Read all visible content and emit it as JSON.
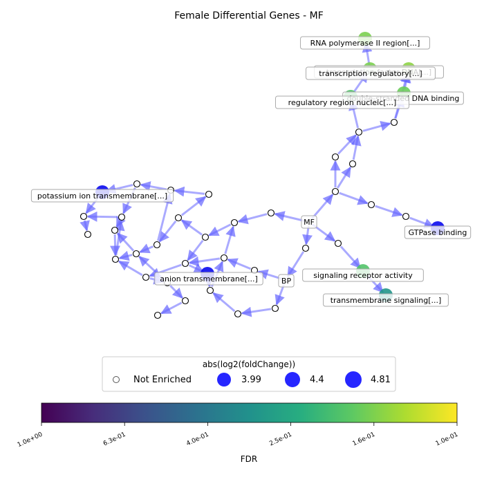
{
  "chart_data": {
    "type": "network",
    "title": "Female Differential Genes - MF",
    "root_label": "MF",
    "edge_color": "#6464ff",
    "nodes": [
      {
        "id": "MF",
        "label": "MF",
        "enriched": false,
        "root": true
      },
      {
        "id": "BP",
        "label": "BP",
        "enriched": false
      },
      {
        "id": "rnapol",
        "label": "RNA polymerase II region[...]",
        "enriched": true,
        "fdr": 0.16
      },
      {
        "id": "tfdna",
        "label": "transcription factor DNA[...]",
        "enriched": true,
        "fdr": 0.15
      },
      {
        "id": "treg",
        "label": "transcription regulatory[...]",
        "enriched": true,
        "fdr": 0.16
      },
      {
        "id": "dsdna",
        "label": "double-stranded DNA binding",
        "enriched": true,
        "fdr": 0.17
      },
      {
        "id": "regreg",
        "label": "regulatory region nucleic[...]",
        "enriched": true,
        "fdr": 0.19
      },
      {
        "id": "potassium",
        "label": "potassium ion transmembrane[...]",
        "enriched": true,
        "fdr": 1.0
      },
      {
        "id": "gtpase",
        "label": "GTPase binding",
        "enriched": true,
        "fdr": 1.0
      },
      {
        "id": "anion",
        "label": "anion transmembrane[...]",
        "enriched": true,
        "fdr": 1.0
      },
      {
        "id": "signaling",
        "label": "signaling receptor activity",
        "enriched": true,
        "fdr": 0.19
      },
      {
        "id": "tmsignal",
        "label": "transmembrane signaling[...]",
        "enriched": true,
        "fdr": 0.3
      }
    ],
    "colorbar": {
      "label": "FDR",
      "scale": "log",
      "range": [
        1.0,
        0.1
      ],
      "tick_labels": [
        "1.0e+00",
        "6.3e-01",
        "4.0e-01",
        "2.5e-01",
        "1.6e-01",
        "1.0e-01"
      ]
    },
    "legend": {
      "title": "abs(log2(foldChange))",
      "position": "bottom-center",
      "items": [
        {
          "label": "Not Enriched",
          "value": null
        },
        {
          "label": "3.99",
          "value": 3.99
        },
        {
          "label": "4.4",
          "value": 4.4
        },
        {
          "label": "4.81",
          "value": 4.81
        }
      ]
    }
  }
}
